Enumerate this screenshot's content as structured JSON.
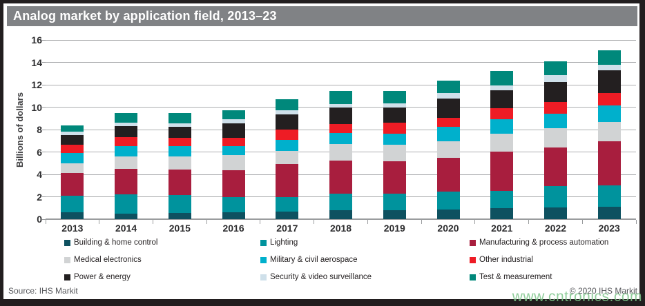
{
  "title_bar": {
    "text": "Analog market by application field, 2013–23"
  },
  "chart_data": {
    "type": "bar",
    "subtype": "stacked-vertical",
    "title": "Analog market by application field, 2013–23",
    "xlabel": "",
    "ylabel": "Billions of dollars",
    "ylim": [
      0,
      16
    ],
    "yticks": [
      0,
      2,
      4,
      6,
      8,
      10,
      12,
      14,
      16
    ],
    "grid": true,
    "legend_position": "bottom",
    "categories": [
      "2013",
      "2014",
      "2015",
      "2016",
      "2017",
      "2018",
      "2019",
      "2020",
      "2021",
      "2022",
      "2023"
    ],
    "series": [
      {
        "name": "Building & home control",
        "color": "#0e5160",
        "values": [
          0.6,
          0.5,
          0.55,
          0.6,
          0.7,
          0.8,
          0.8,
          0.85,
          1.0,
          1.05,
          1.1
        ]
      },
      {
        "name": "Lighting",
        "color": "#00939d",
        "values": [
          1.5,
          1.7,
          1.6,
          1.4,
          1.3,
          1.5,
          1.45,
          1.6,
          1.55,
          1.9,
          1.9
        ]
      },
      {
        "name": "Manufacturing & process automation",
        "color": "#a81e3e",
        "values": [
          2.05,
          2.3,
          2.3,
          2.4,
          2.9,
          2.95,
          2.95,
          3.05,
          3.5,
          3.45,
          3.95
        ]
      },
      {
        "name": "Medical electronics",
        "color": "#d1d3d4",
        "values": [
          0.85,
          1.1,
          1.15,
          1.3,
          1.2,
          1.45,
          1.45,
          1.45,
          1.6,
          1.7,
          1.7
        ]
      },
      {
        "name": "Military & civil aerospace",
        "color": "#00b0cc",
        "values": [
          0.9,
          0.95,
          0.9,
          0.85,
          1.0,
          1.0,
          1.0,
          1.3,
          1.25,
          1.3,
          1.5
        ]
      },
      {
        "name": "Other industrial",
        "color": "#ee1c25",
        "values": [
          0.75,
          0.75,
          0.75,
          0.7,
          0.9,
          0.8,
          0.95,
          0.8,
          1.0,
          1.05,
          1.1
        ]
      },
      {
        "name": "Power & energy",
        "color": "#231f20",
        "values": [
          0.85,
          1.0,
          1.0,
          1.3,
          1.35,
          1.5,
          1.4,
          1.75,
          1.6,
          1.8,
          2.05
        ]
      },
      {
        "name": "Security & video surveillance",
        "color": "#cfe0ea",
        "values": [
          0.3,
          0.3,
          0.3,
          0.35,
          0.35,
          0.3,
          0.35,
          0.45,
          0.45,
          0.6,
          0.5
        ]
      },
      {
        "name": "Test & measurement",
        "color": "#00887b",
        "values": [
          0.6,
          0.85,
          0.9,
          0.8,
          1.0,
          1.15,
          1.1,
          1.1,
          1.3,
          1.25,
          1.25
        ]
      }
    ],
    "totals": [
      8.4,
      9.45,
      9.45,
      9.7,
      10.7,
      11.45,
      11.45,
      12.35,
      13.25,
      14.1,
      15.05
    ]
  },
  "footer": {
    "source": "Source: IHS Markit",
    "copyright": "© 2020 IHS Markit"
  },
  "watermark": {
    "text": "www.cntronics.com"
  },
  "colors": {
    "title_bg": "#808285",
    "frame_border": "#221e1f",
    "gridline": "#aaacae",
    "watermark_green": "#7cc48a"
  }
}
